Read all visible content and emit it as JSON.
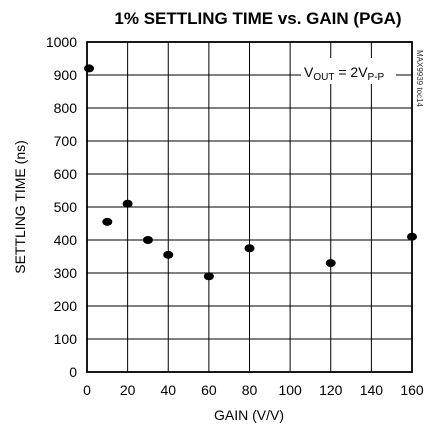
{
  "chart_data": {
    "type": "scatter",
    "title": "1% SETTLING TIME vs. GAIN (PGA)",
    "xlabel": "GAIN (V/V)",
    "ylabel": "SETTLING TIME (ns)",
    "xlim": [
      0,
      160
    ],
    "ylim": [
      0,
      1000
    ],
    "xticks": [
      "0",
      "20",
      "40",
      "60",
      "80",
      "100",
      "120",
      "140",
      "160"
    ],
    "yticks": [
      "0",
      "100",
      "200",
      "300",
      "400",
      "500",
      "600",
      "700",
      "800",
      "900",
      "1000"
    ],
    "grid": true,
    "points": [
      {
        "x": 1,
        "y": 920
      },
      {
        "x": 10,
        "y": 455
      },
      {
        "x": 20,
        "y": 510
      },
      {
        "x": 30,
        "y": 400
      },
      {
        "x": 40,
        "y": 355
      },
      {
        "x": 60,
        "y": 290
      },
      {
        "x": 80,
        "y": 375
      },
      {
        "x": 120,
        "y": 330
      },
      {
        "x": 160,
        "y": 410
      }
    ],
    "annotation": {
      "main": "V",
      "main_sub": "OUT",
      "mid": " = 2V",
      "end_sub": "P-P"
    },
    "watermark": "MAX9939 toc14"
  }
}
